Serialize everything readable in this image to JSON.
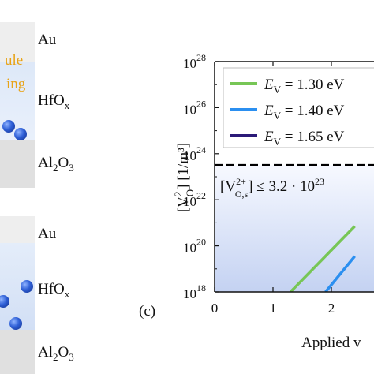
{
  "left_panel": {
    "top_stack": {
      "au": "Au",
      "hfox_main": "HfO",
      "hfox_sub": "x",
      "al2o3_a": "Al",
      "al2o3_sub": "2",
      "al2o3_b": "O",
      "al2o3_sub2": "3",
      "partial_line1": "ule",
      "partial_line2": "ing"
    },
    "bottom_stack": {
      "au": "Au",
      "hfox_main": "HfO",
      "hfox_sub": "x",
      "al2o3_a": "Al",
      "al2o3_sub": "2",
      "al2o3_b": "O",
      "al2o3_sub2": "3"
    }
  },
  "colors": {
    "green": "#77c656",
    "blue": "#2b8ff0",
    "navy": "#2b1a78",
    "threshold": "#000000",
    "shade_top": "#f7f9ff",
    "shade_bottom": "#c4d2f2"
  },
  "chart_data": {
    "type": "line",
    "panel_label": "(c)",
    "ylabel": "[V_O^{2-}] [1/m³]",
    "xlabel_partial": "Applied v",
    "x_ticks": [
      0,
      1,
      2
    ],
    "y_ticks": [
      18,
      20,
      22,
      24,
      26,
      28
    ],
    "y_tick_labels": [
      "10",
      "10",
      "10",
      "10",
      "10",
      "10"
    ],
    "y_tick_exponents": [
      "18",
      "20",
      "22",
      "24",
      "26",
      "28"
    ],
    "xlim": [
      0,
      2.4
    ],
    "ylim_log10": [
      18,
      28
    ],
    "y_scale": "log",
    "legend_position": "top-right",
    "series": [
      {
        "name": "E_V = 1.30 eV",
        "label_pre": "E",
        "label_sub": "V",
        "label_post": " = 1.30 eV",
        "color": "#77c656",
        "x": [
          1.3,
          2.4
        ],
        "log10_y": [
          18.0,
          20.85
        ]
      },
      {
        "name": "E_V = 1.40 eV",
        "label_pre": "E",
        "label_sub": "V",
        "label_post": " = 1.40 eV",
        "color": "#2b8ff0",
        "x": [
          1.9,
          2.4
        ],
        "log10_y": [
          18.0,
          19.55
        ]
      },
      {
        "name": "E_V = 1.65 eV",
        "label_pre": "E",
        "label_sub": "V",
        "label_post": " = 1.65 eV",
        "color": "#2b1a78",
        "x": [],
        "log10_y": []
      }
    ],
    "threshold": {
      "log10_y": 23.5,
      "label_prefix": "[V",
      "label_sup": "2+",
      "label_sub": "O,s",
      "label_suffix": "] ≤ 3.2 · 10",
      "label_exp": "23"
    }
  }
}
